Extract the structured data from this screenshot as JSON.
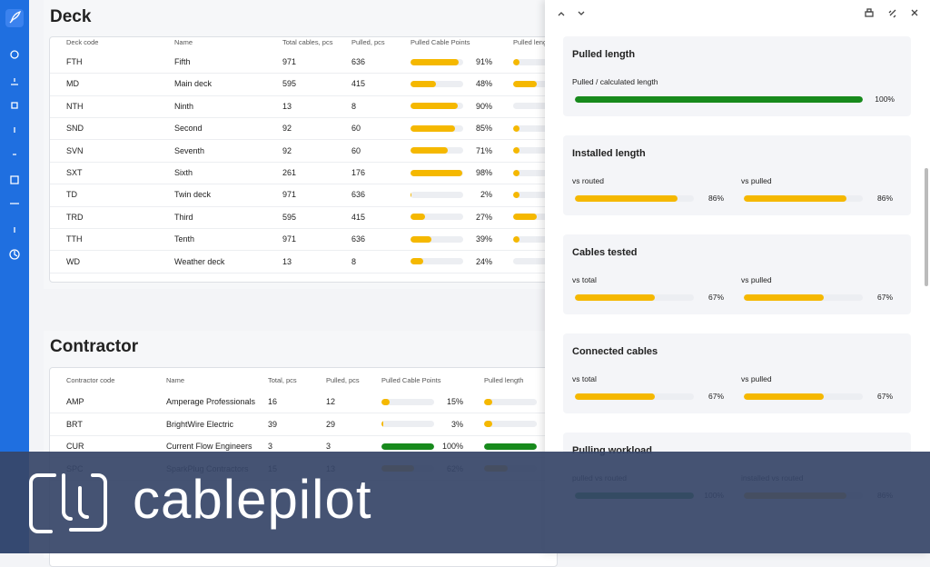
{
  "deck": {
    "title": "Deck",
    "columns": [
      "Deck code",
      "Name",
      "Total cables, pcs",
      "Pulled, pcs",
      "Pulled Cable Points",
      "Pulled length"
    ],
    "rows": [
      {
        "code": "FTH",
        "name": "Fifth",
        "total": 971,
        "pulled": 636,
        "points": {
          "value": 91,
          "label": "91%"
        },
        "length": 12
      },
      {
        "code": "MD",
        "name": "Main deck",
        "total": 595,
        "pulled": 415,
        "points": {
          "value": 48,
          "label": "48%"
        },
        "length": 45
      },
      {
        "code": "NTH",
        "name": "Ninth",
        "total": 13,
        "pulled": 8,
        "points": {
          "value": 90,
          "label": "90%"
        },
        "length": 0
      },
      {
        "code": "SND",
        "name": "Second",
        "total": 92,
        "pulled": 60,
        "points": {
          "value": 85,
          "label": "85%"
        },
        "length": 12
      },
      {
        "code": "SVN",
        "name": "Seventh",
        "total": 92,
        "pulled": 60,
        "points": {
          "value": 71,
          "label": "71%"
        },
        "length": 12
      },
      {
        "code": "SXT",
        "name": "Sixth",
        "total": 261,
        "pulled": 176,
        "points": {
          "value": 98,
          "label": "98%"
        },
        "length": 12
      },
      {
        "code": "TD",
        "name": "Twin deck",
        "total": 971,
        "pulled": 636,
        "points": {
          "value": 2,
          "label": "2%"
        },
        "length": 12
      },
      {
        "code": "TRD",
        "name": "Third",
        "total": 595,
        "pulled": 415,
        "points": {
          "value": 27,
          "label": "27%"
        },
        "length": 45
      },
      {
        "code": "TTH",
        "name": "Tenth",
        "total": 971,
        "pulled": 636,
        "points": {
          "value": 39,
          "label": "39%"
        },
        "length": 12
      },
      {
        "code": "WD",
        "name": "Weather deck",
        "total": 13,
        "pulled": 8,
        "points": {
          "value": 24,
          "label": "24%"
        },
        "length": 0
      }
    ]
  },
  "contractor": {
    "title": "Contractor",
    "columns": [
      "Contractor code",
      "Name",
      "Total, pcs",
      "Pulled, pcs",
      "Pulled Cable Points",
      "Pulled length"
    ],
    "rows": [
      {
        "code": "AMP",
        "name": "Amperage Professionals",
        "total": 16,
        "pulled": 12,
        "points": {
          "value": 15,
          "label": "15%"
        },
        "length": 15
      },
      {
        "code": "BRT",
        "name": "BrightWire Electric",
        "total": 39,
        "pulled": 29,
        "points": {
          "value": 3,
          "label": "3%"
        },
        "length": 15
      },
      {
        "code": "CUR",
        "name": "Current Flow Engineers",
        "total": 3,
        "pulled": 3,
        "points": {
          "value": 100,
          "label": "100%"
        },
        "length": 100
      },
      {
        "code": "SPC",
        "name": "SparkPlug Contractors",
        "total": 15,
        "pulled": 13,
        "points": {
          "value": 62,
          "label": "62%"
        },
        "length": 45
      }
    ]
  },
  "panel": {
    "cards": [
      {
        "title": "Pulled length",
        "metrics": [
          {
            "label": "Pulled / calculated length",
            "value": 100,
            "value_label": "100%"
          }
        ]
      },
      {
        "title": "Installed length",
        "metrics": [
          {
            "label": "vs routed",
            "value": 86,
            "value_label": "86%"
          },
          {
            "label": "vs pulled",
            "value": 86,
            "value_label": "86%"
          }
        ]
      },
      {
        "title": "Cables tested",
        "metrics": [
          {
            "label": "vs total",
            "value": 67,
            "value_label": "67%"
          },
          {
            "label": "vs pulled",
            "value": 67,
            "value_label": "67%"
          }
        ]
      },
      {
        "title": "Connected cables",
        "metrics": [
          {
            "label": "vs total",
            "value": 67,
            "value_label": "67%"
          },
          {
            "label": "vs pulled",
            "value": 67,
            "value_label": "67%"
          }
        ]
      },
      {
        "title": "Pulling workload",
        "metrics": [
          {
            "label": "pulled vs routed",
            "value": 100,
            "value_label": "100%"
          },
          {
            "label": "installed vs routed",
            "value": 86,
            "value_label": "86%"
          }
        ]
      }
    ]
  },
  "logo": "cablepilot"
}
